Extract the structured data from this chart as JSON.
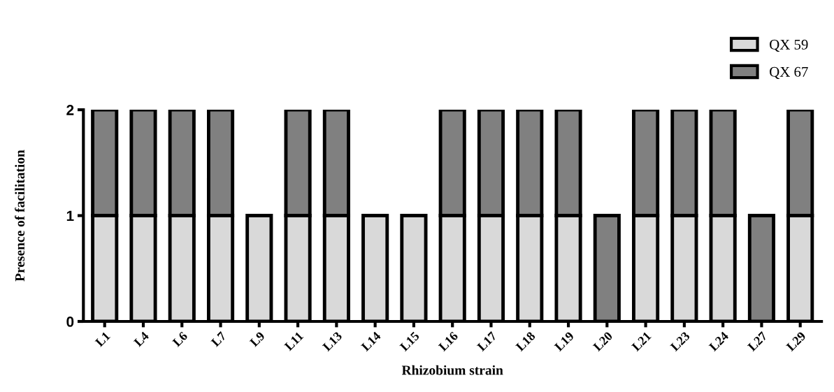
{
  "chart_data": {
    "type": "bar",
    "stacked": true,
    "xlabel": "Rhizobium strain",
    "ylabel": "Presence of facilitation",
    "categories": [
      "L1",
      "L4",
      "L6",
      "L7",
      "L9",
      "L11",
      "L13",
      "L14",
      "L15",
      "L16",
      "L17",
      "L18",
      "L19",
      "L20",
      "L21",
      "L23",
      "L24",
      "L27",
      "L29"
    ],
    "series": [
      {
        "name": "QX 59",
        "color": "#d9d9d9",
        "values": [
          1,
          1,
          1,
          1,
          1,
          1,
          1,
          1,
          1,
          1,
          1,
          1,
          1,
          0,
          1,
          1,
          1,
          0,
          1
        ]
      },
      {
        "name": "QX 67",
        "color": "#808080",
        "values": [
          1,
          1,
          1,
          1,
          0,
          1,
          1,
          0,
          0,
          1,
          1,
          1,
          1,
          1,
          1,
          1,
          1,
          1,
          1
        ]
      }
    ],
    "ylim": [
      0,
      2
    ],
    "yticks": [
      0,
      1,
      2
    ],
    "grid": false,
    "legend": "top right"
  }
}
